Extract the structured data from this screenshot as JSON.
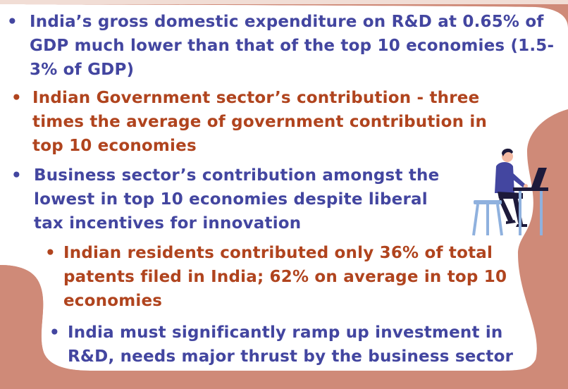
{
  "colors": {
    "background": "#cf8a78",
    "card": "#ffffff",
    "blue_text": "#4346a0",
    "red_text": "#b0441e"
  },
  "bullets": [
    {
      "marker": "•",
      "text": "India’s gross domestic expenditure on R&D at 0.65% of GDP much lower than that of the top 10 economies (1.5-3% of GDP)"
    },
    {
      "marker": "•",
      "text": "Indian Government sector’s contribution - three times the average of government contribution in top 10 economies"
    },
    {
      "marker": "•",
      "text": "Business sector’s contribution amongst the lowest in top 10 economies despite liberal tax incentives for innovation"
    },
    {
      "marker": "•",
      "text": "Indian residents contributed only 36% of total patents filed in India; 62% on average in top 10 economies"
    },
    {
      "marker": "•",
      "text": "India must significantly ramp up investment in R&D, needs major thrust by the business sector"
    }
  ],
  "illustration": {
    "icon": "person-at-laptop-icon"
  }
}
